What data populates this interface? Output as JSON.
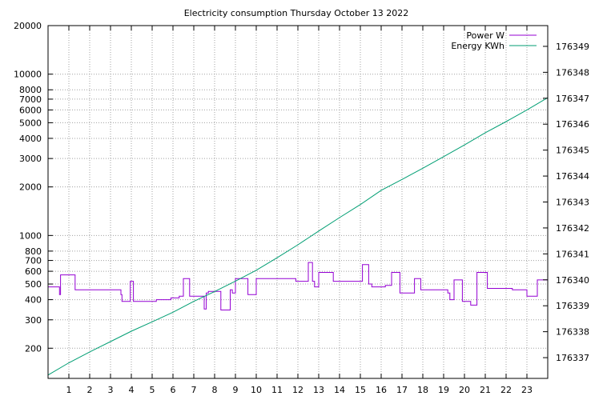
{
  "chart_data": {
    "type": "line",
    "title": "Electricity consumption Thursday October 13 2022",
    "xlim": [
      0,
      24
    ],
    "x_ticks": [
      1,
      2,
      3,
      4,
      5,
      6,
      7,
      8,
      9,
      10,
      11,
      12,
      13,
      14,
      15,
      16,
      17,
      18,
      19,
      20,
      21,
      22,
      23
    ],
    "y_left": {
      "scale": "log",
      "lim": [
        130,
        20000
      ],
      "ticks": [
        200,
        300,
        400,
        500,
        600,
        700,
        800,
        1000,
        2000,
        3000,
        4000,
        5000,
        6000,
        7000,
        8000,
        10000,
        20000
      ]
    },
    "y_right": {
      "scale": "linear",
      "lim": [
        176336.2,
        176349.8
      ],
      "ticks": [
        176337,
        176338,
        176339,
        176340,
        176341,
        176342,
        176343,
        176344,
        176345,
        176346,
        176347,
        176348,
        176349
      ]
    },
    "grid": true,
    "legend_position": "top-right",
    "series": [
      {
        "name": "Power W",
        "axis": "left",
        "color": "#9400d3",
        "step": true,
        "x": [
          0,
          0.55,
          0.6,
          1.3,
          2.7,
          3.5,
          3.55,
          3.95,
          4.1,
          5.2,
          5.9,
          6.3,
          6.5,
          6.5,
          6.8,
          7.5,
          7.6,
          7.7,
          8.3,
          8.75,
          8.85,
          9.0,
          9.6,
          10.0,
          11.9,
          12.5,
          12.7,
          12.8,
          13.0,
          13.7,
          15.1,
          15.4,
          15.55,
          16.2,
          16.5,
          16.9,
          17.45,
          17.6,
          17.9,
          19.2,
          19.3,
          19.5,
          19.9,
          20.3,
          20.6,
          21.1,
          22.3,
          23.0,
          23.5
        ],
        "values": [
          480,
          430,
          570,
          460,
          460,
          430,
          390,
          520,
          390,
          400,
          410,
          420,
          540,
          540,
          420,
          350,
          440,
          450,
          345,
          460,
          440,
          540,
          430,
          540,
          520,
          680,
          520,
          480,
          590,
          520,
          660,
          500,
          480,
          490,
          590,
          440,
          440,
          540,
          460,
          440,
          400,
          530,
          390,
          370,
          590,
          470,
          460,
          420,
          530
        ]
      },
      {
        "name": "Energy KWh",
        "axis": "right",
        "color": "#009e73",
        "step": false,
        "x": [
          0,
          1,
          2,
          3,
          4,
          5,
          6,
          7,
          8,
          9,
          10,
          11,
          12,
          13,
          14,
          15,
          16,
          17,
          18,
          19,
          20,
          21,
          22,
          23,
          24
        ],
        "values": [
          176336.33,
          176336.8,
          176337.22,
          176337.62,
          176338.02,
          176338.38,
          176338.75,
          176339.17,
          176339.55,
          176339.95,
          176340.37,
          176340.85,
          176341.35,
          176341.88,
          176342.4,
          176342.9,
          176343.45,
          176343.87,
          176344.3,
          176344.75,
          176345.2,
          176345.67,
          176346.1,
          176346.55,
          176347.02
        ]
      }
    ]
  }
}
